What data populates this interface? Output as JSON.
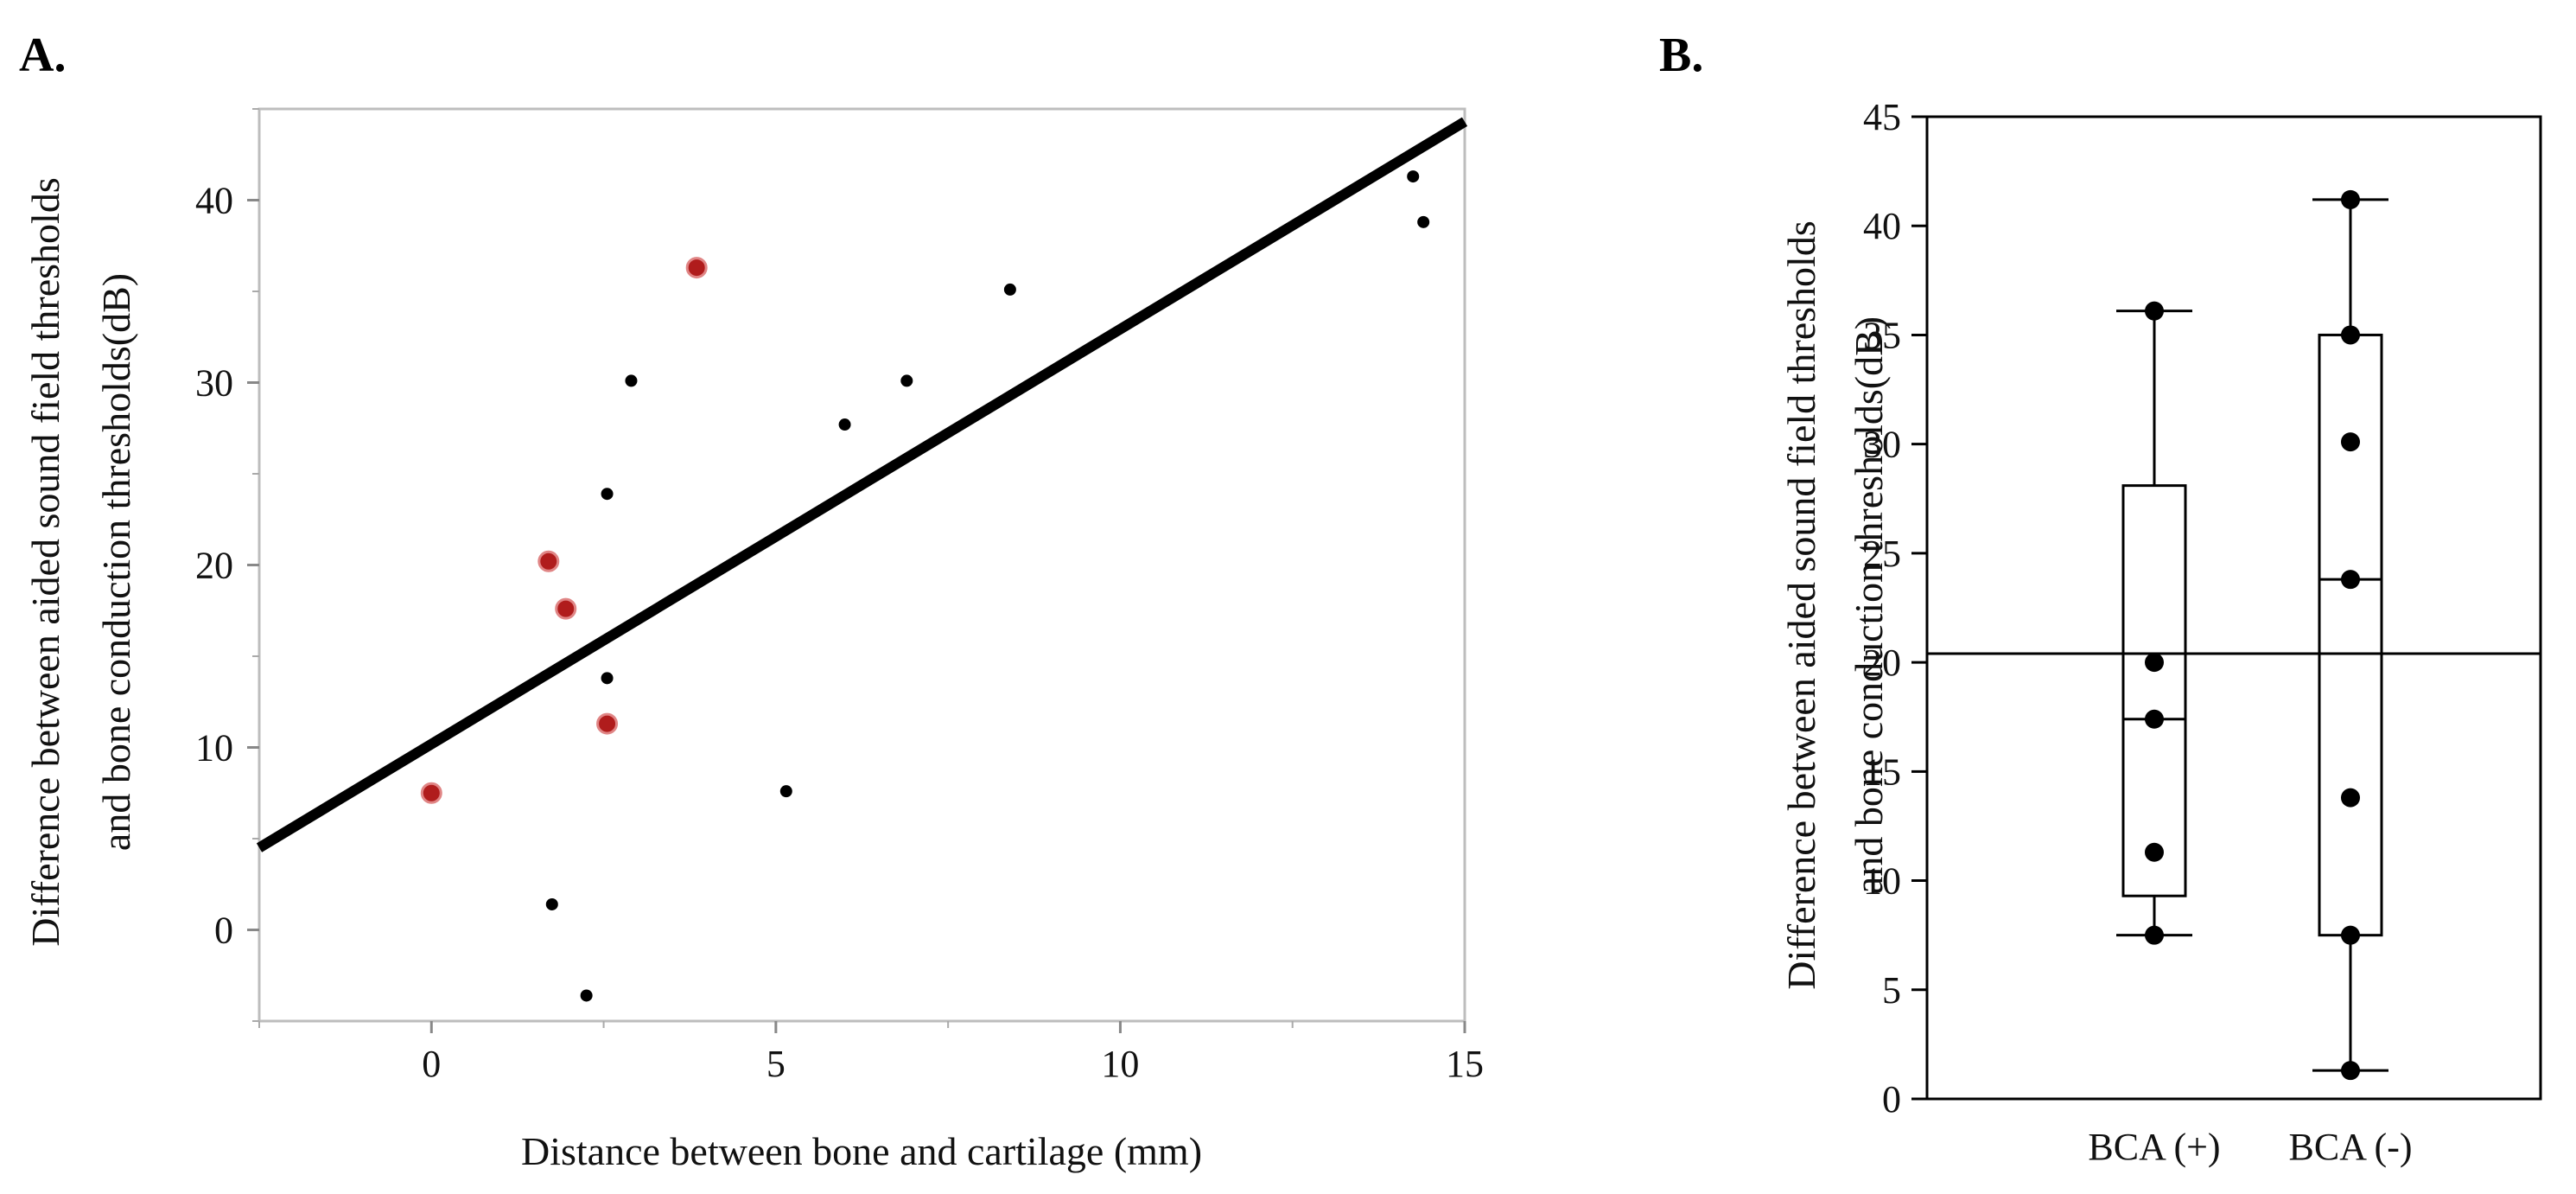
{
  "chart_data": [
    {
      "type": "scatter",
      "panel_label": "A.",
      "xlabel": "Distance between bone and cartilage (mm)",
      "ylabel": [
        "Difference between aided sound field thresholds",
        "and bone conduction thresholds(dB)"
      ],
      "xlim": [
        -2.5,
        15
      ],
      "ylim": [
        -5,
        45
      ],
      "x_ticks": [
        0,
        5,
        10,
        15
      ],
      "y_ticks": [
        0,
        10,
        20,
        30,
        40
      ],
      "colors": {
        "highlight": "#b01c1c",
        "default": "#000000",
        "fit": "#000000"
      },
      "series": [
        {
          "name": "red",
          "points": [
            {
              "x": 0.0,
              "y": 7.5
            },
            {
              "x": 1.7,
              "y": 20.2
            },
            {
              "x": 1.95,
              "y": 17.6
            },
            {
              "x": 2.55,
              "y": 11.3
            },
            {
              "x": 3.85,
              "y": 36.3
            }
          ]
        },
        {
          "name": "black",
          "points": [
            {
              "x": 1.75,
              "y": 1.4
            },
            {
              "x": 2.25,
              "y": -3.6
            },
            {
              "x": 2.55,
              "y": 13.8
            },
            {
              "x": 2.55,
              "y": 23.9
            },
            {
              "x": 2.9,
              "y": 30.1
            },
            {
              "x": 5.15,
              "y": 7.6
            },
            {
              "x": 6.0,
              "y": 27.7
            },
            {
              "x": 6.9,
              "y": 30.1
            },
            {
              "x": 8.4,
              "y": 35.1
            },
            {
              "x": 14.25,
              "y": 41.3
            },
            {
              "x": 14.4,
              "y": 38.8
            }
          ]
        }
      ],
      "fit_line": {
        "x": [
          -2.5,
          15
        ],
        "y": [
          4.5,
          44.3
        ]
      }
    },
    {
      "type": "box",
      "panel_label": "B.",
      "ylabel": [
        "Difference between aided sound field thresholds",
        "and bone conduction thresholds(dB)"
      ],
      "ylim": [
        0,
        45
      ],
      "y_ticks": [
        0,
        5,
        10,
        15,
        20,
        25,
        30,
        35,
        40,
        45
      ],
      "categories": [
        "BCA (+)",
        "BCA (-)"
      ],
      "boxes": [
        {
          "whisker_low": 7.5,
          "q1": 9.3,
          "median": 17.4,
          "q3": 28.1,
          "whisker_high": 36.1,
          "points": [
            7.5,
            11.3,
            17.4,
            20.0,
            36.1
          ]
        },
        {
          "whisker_low": 1.3,
          "q1": 7.5,
          "median": 23.8,
          "q3": 35.0,
          "whisker_high": 41.2,
          "points": [
            1.3,
            7.5,
            13.8,
            23.8,
            30.1,
            35.0,
            41.2
          ]
        }
      ],
      "reference_line": 20.4
    }
  ]
}
